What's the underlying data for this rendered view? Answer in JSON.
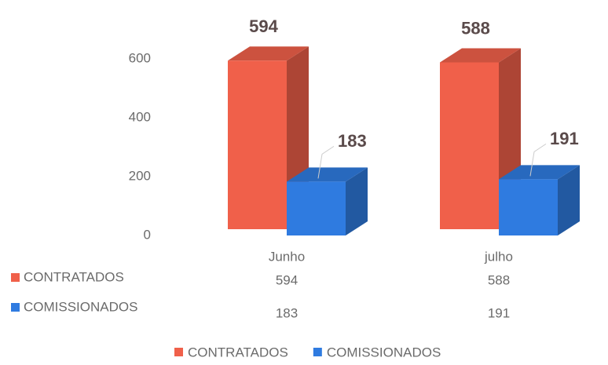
{
  "chart_data": {
    "type": "bar3d",
    "categories": [
      "Junho",
      "julho"
    ],
    "series": [
      {
        "name": "CONTRATADOS",
        "color": "#f0604a",
        "values": [
          594,
          588
        ]
      },
      {
        "name": "COMISSIONADOS",
        "color": "#2f7be0",
        "values": [
          183,
          191
        ]
      }
    ],
    "ylim": [
      0,
      700
    ],
    "yticks": [
      0,
      200,
      400,
      600
    ],
    "legend": "bottom"
  }
}
